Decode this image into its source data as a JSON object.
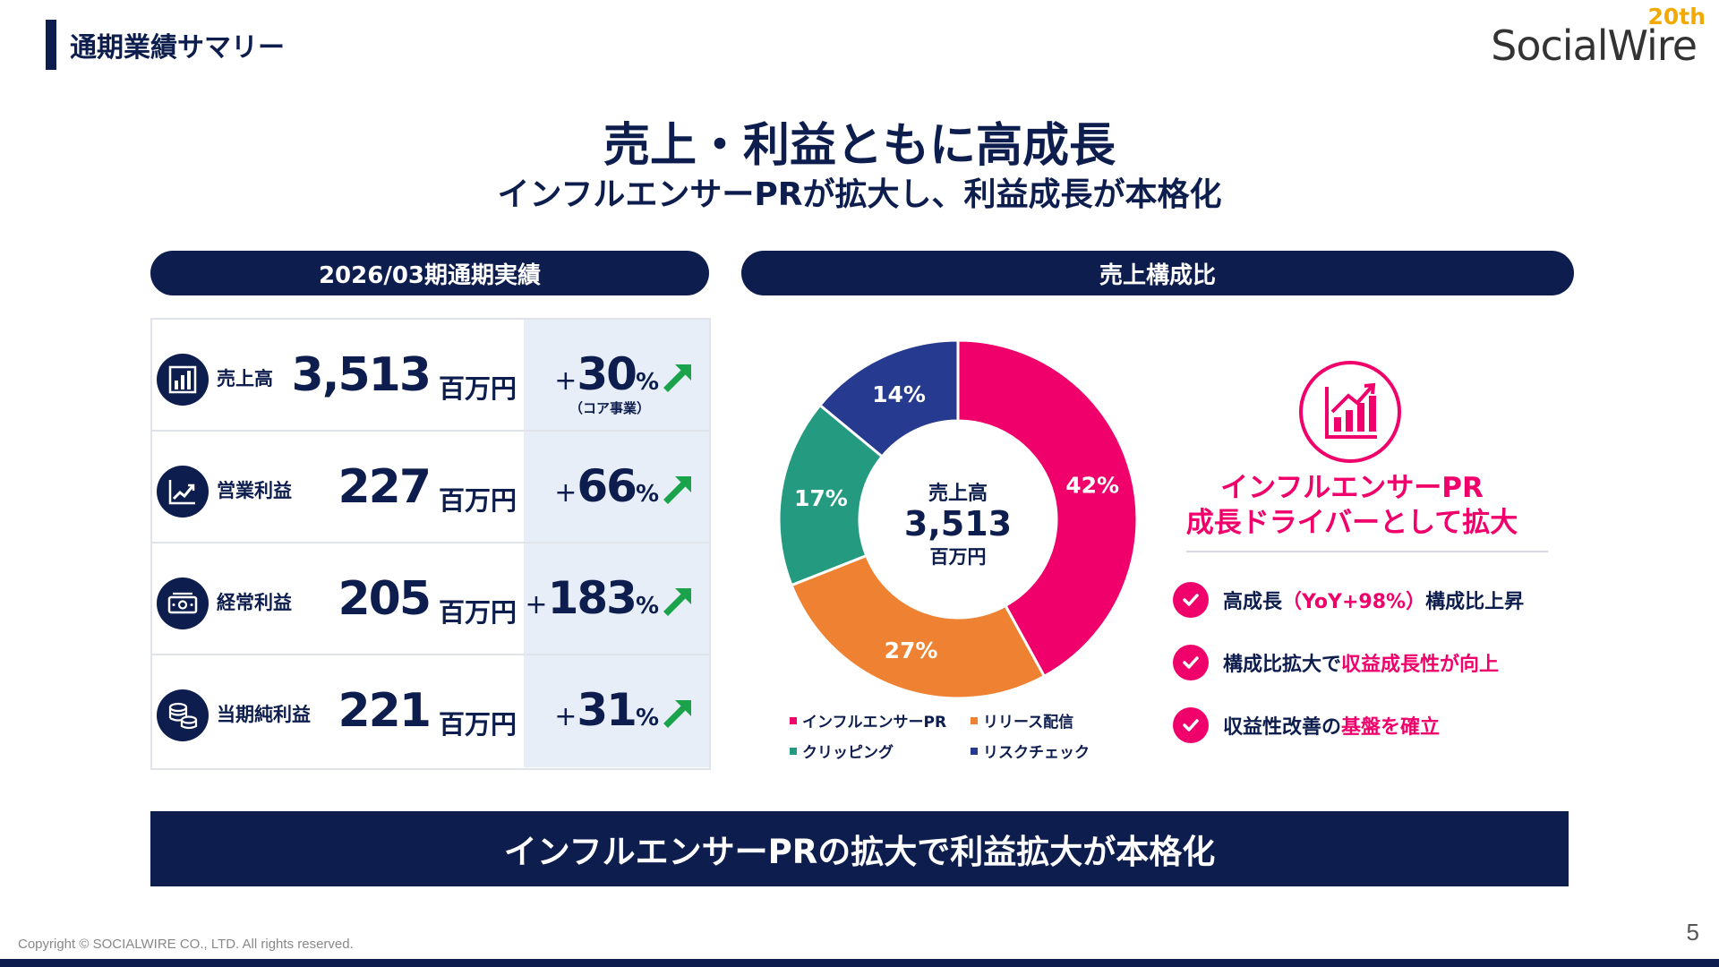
{
  "header": {
    "title": "通期業績サマリー"
  },
  "logo": {
    "badge": "20th",
    "text": "SocialWire"
  },
  "main_title": "売上・利益ともに高成長",
  "subtitle": "インフルエンサーPRが拡大し、利益成長が本格化",
  "left_panel": {
    "heading": "2026/03期通期実績",
    "rows": [
      {
        "icon": "bar-chart-icon",
        "label": "売上高",
        "value": "3,513",
        "unit": "百万円",
        "plus": "+",
        "yoy": "30",
        "pct": "%",
        "note": "（コア事業）"
      },
      {
        "icon": "line-chart-icon",
        "label": "営業利益",
        "value": "227",
        "unit": "百万円",
        "plus": "+",
        "yoy": "66",
        "pct": "%",
        "note": ""
      },
      {
        "icon": "cash-icon",
        "label": "経常利益",
        "value": "205",
        "unit": "百万円",
        "plus": "+",
        "yoy": "183",
        "pct": "%",
        "note": ""
      },
      {
        "icon": "coins-icon",
        "label": "当期純利益",
        "value": "221",
        "unit": "百万円",
        "plus": "+",
        "yoy": "31",
        "pct": "%",
        "note": ""
      }
    ]
  },
  "right_panel": {
    "heading": "売上構成比"
  },
  "chart_data": {
    "type": "pie",
    "donut": true,
    "center_label": {
      "line1": "売上高",
      "line2": "3,513",
      "line3": "百万円"
    },
    "categories": [
      "インフルエンサーPR",
      "リリース配信",
      "クリッピング",
      "リスクチェック"
    ],
    "values": [
      42,
      27,
      17,
      14
    ],
    "value_labels": [
      "42%",
      "27%",
      "17%",
      "14%"
    ],
    "colors": [
      "#f0006a",
      "#ee8232",
      "#249a80",
      "#263a8f"
    ],
    "legend_position": "bottom"
  },
  "driver": {
    "icon": "growth-chart-icon",
    "title_line1": "インフルエンサーPR",
    "title_line2": "成長ドライバーとして拡大",
    "items": [
      {
        "pre": "高成長",
        "hl": "（YoY+98%）",
        "post": "構成比上昇"
      },
      {
        "pre": "構成比拡大で",
        "hl": "収益成長性が向上",
        "post": ""
      },
      {
        "pre": "収益性改善の",
        "hl": "基盤を確立",
        "post": ""
      }
    ]
  },
  "banner": "インフルエンサーPRの拡大で利益拡大が本格化",
  "footer": {
    "copyright": "Copyright © SOCIALWIRE CO., LTD. All rights reserved.",
    "page": "5"
  },
  "colors": {
    "navy": "#0d1d4d",
    "pink": "#f0006a",
    "green": "#1aa34a",
    "shade": "#e8eef8",
    "logo_gold": "#f2a900"
  }
}
